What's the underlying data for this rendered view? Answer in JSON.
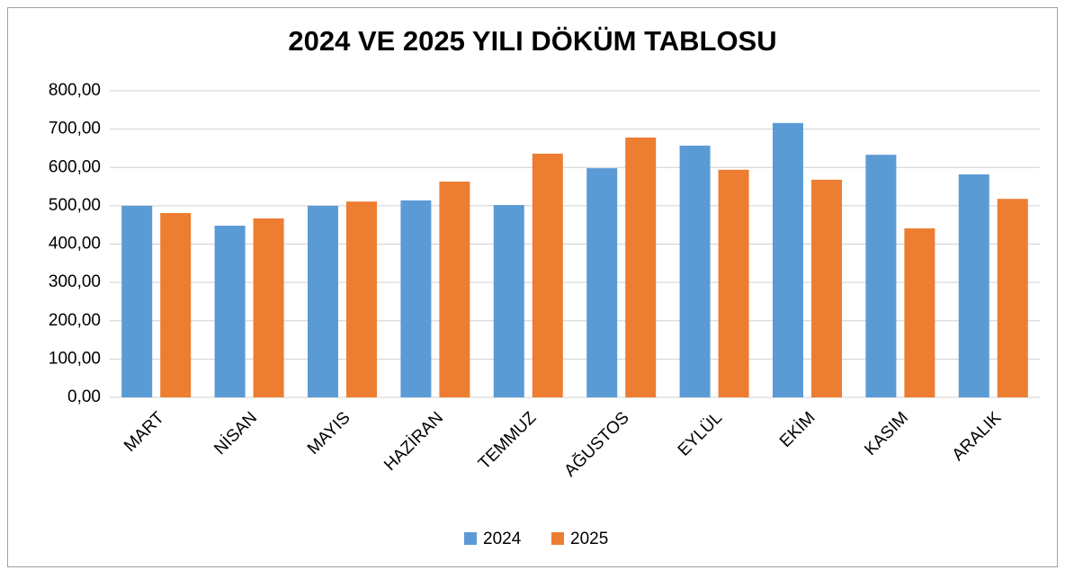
{
  "chart_data": {
    "type": "bar",
    "title": "2024 VE 2025 YILI DÖKÜM TABLOSU",
    "categories": [
      "MART",
      "NİSAN",
      "MAYIS",
      "HAZİRAN",
      "TEMMUZ",
      "AĞUSTOS",
      "EYLÜL",
      "EKİM",
      "KASIM",
      "ARALIK"
    ],
    "series": [
      {
        "name": "2024",
        "color": "#5b9bd5",
        "values": [
          500,
          448,
          500,
          514,
          502,
          598,
          657,
          716,
          633,
          582
        ]
      },
      {
        "name": "2025",
        "color": "#ed7d31",
        "values": [
          481,
          467,
          511,
          563,
          636,
          678,
          594,
          568,
          441,
          518
        ]
      }
    ],
    "ylim": [
      0,
      800
    ],
    "yticks": [
      {
        "value": 0,
        "label": "0,00"
      },
      {
        "value": 100,
        "label": "100,00"
      },
      {
        "value": 200,
        "label": "200,00"
      },
      {
        "value": 300,
        "label": "300,00"
      },
      {
        "value": 400,
        "label": "400,00"
      },
      {
        "value": 500,
        "label": "500,00"
      },
      {
        "value": 600,
        "label": "600,00"
      },
      {
        "value": 700,
        "label": "700,00"
      },
      {
        "value": 800,
        "label": "800,00"
      }
    ],
    "grid": true,
    "legend": "bottom"
  }
}
